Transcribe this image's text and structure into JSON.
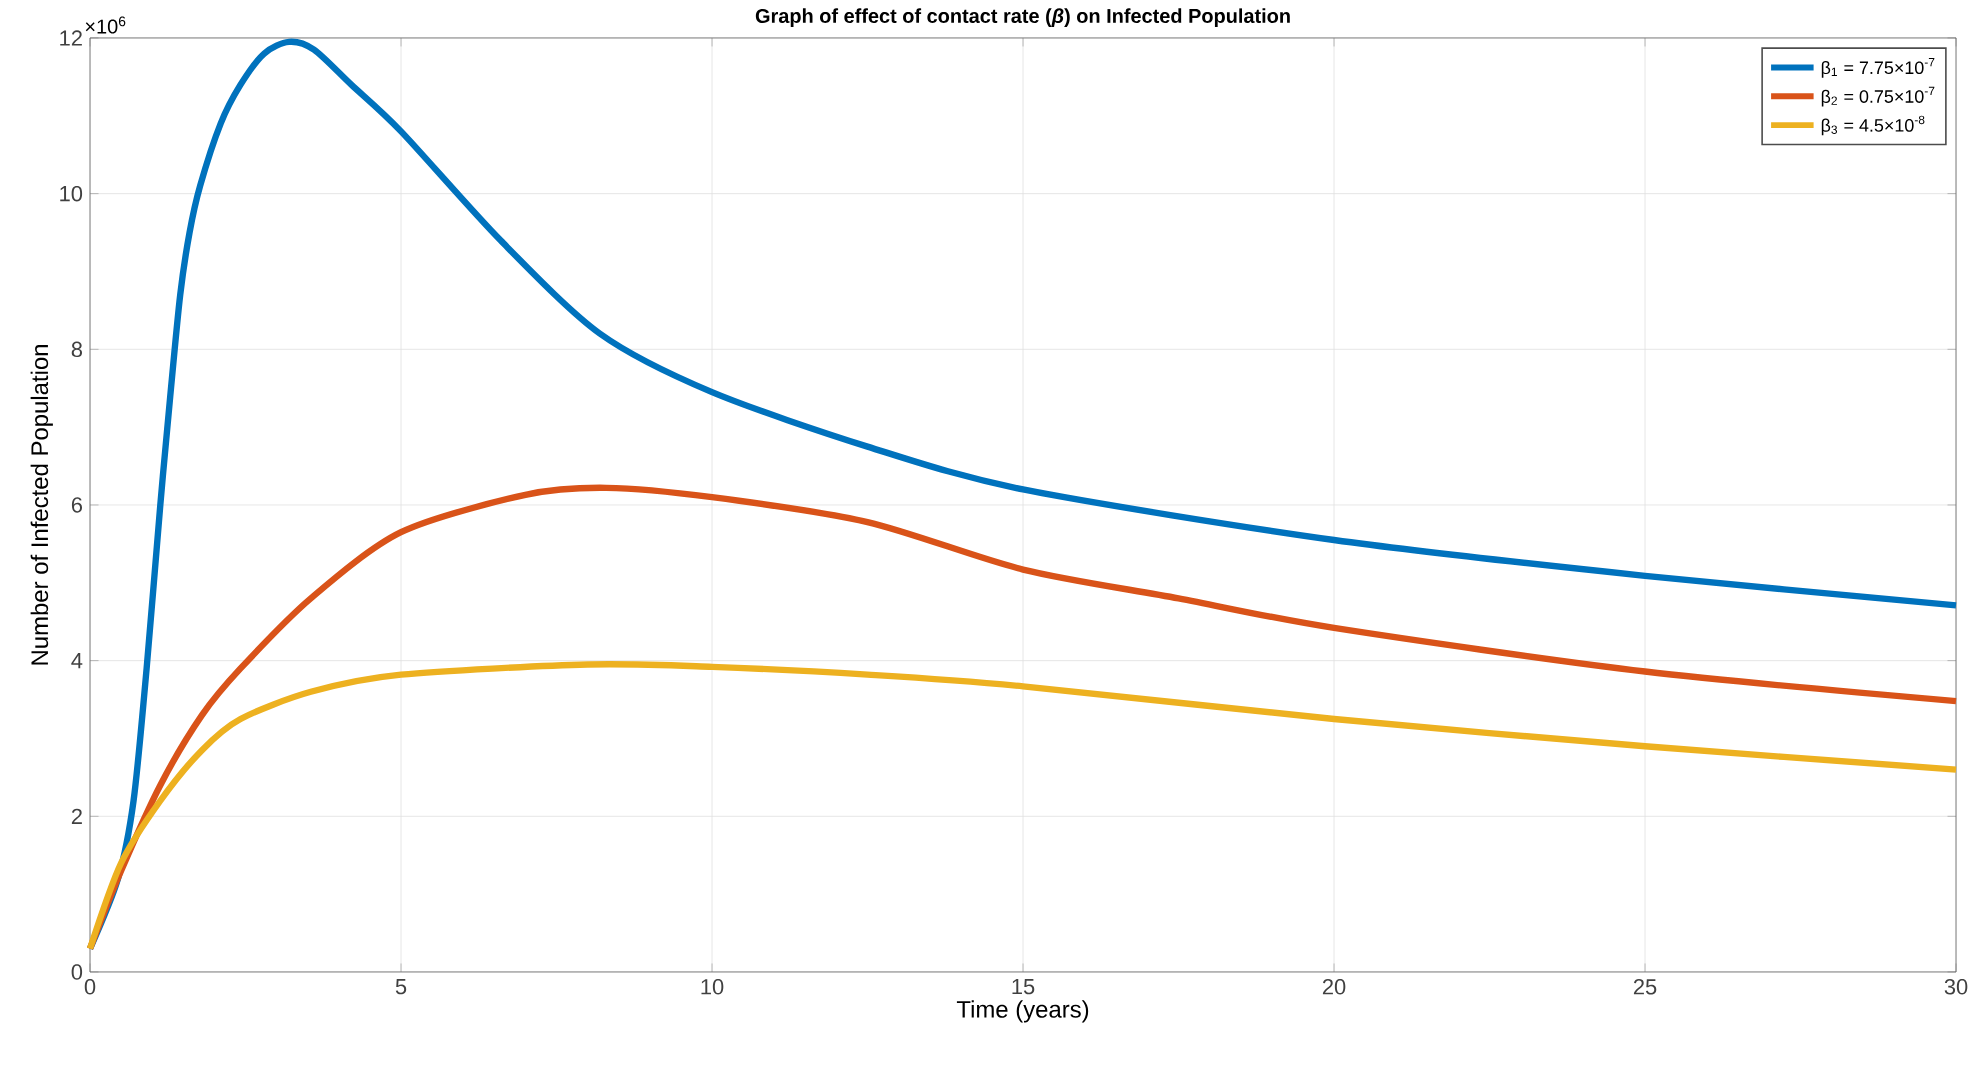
{
  "chart_data": {
    "type": "line",
    "title": "Graph of effect of contact rate (*β*) on Infected Population",
    "xlabel": "Time (years)",
    "ylabel": "Number of Infected Population",
    "annotations": [
      "×10$^{6}$"
    ],
    "xlim": [
      0,
      30
    ],
    "ylim": [
      0,
      12
    ],
    "xticks": [
      0,
      5,
      10,
      15,
      20,
      25,
      30
    ],
    "yticks": [
      0,
      2,
      4,
      6,
      8,
      10,
      12
    ],
    "grid": true,
    "legend": "top right",
    "series": [
      {
        "name": "β$_{1}$ = 7.75×10$^{-7}$",
        "color": "#0072bd",
        "x": [
          0,
          0.45,
          0.7,
          0.91,
          1.13,
          1.29,
          1.45,
          1.6,
          1.77,
          2.1,
          2.42,
          2.8,
          3.2,
          3.6,
          4.2,
          5,
          6.6,
          8.2,
          10,
          12.5,
          15,
          20,
          25,
          30
        ],
        "values": [
          0.3,
          1.2,
          2.2,
          3.9,
          6.0,
          7.4,
          8.7,
          9.5,
          10.1,
          10.9,
          11.4,
          11.8,
          11.95,
          11.85,
          11.4,
          10.8,
          9.4,
          8.2,
          7.45,
          6.75,
          6.2,
          5.55,
          5.09,
          4.71
        ]
      },
      {
        "name": "β$_{2}$ = 0.75×10$^{-7}$",
        "color": "#d95319",
        "x": [
          0,
          0.5,
          1.13,
          1.8,
          2.42,
          3.55,
          5,
          7,
          8.3,
          10,
          12.5,
          15,
          17.5,
          20,
          25,
          30
        ],
        "values": [
          0.3,
          1.3,
          2.4,
          3.3,
          3.9,
          4.8,
          5.65,
          6.13,
          6.22,
          6.1,
          5.78,
          5.17,
          4.8,
          4.42,
          3.86,
          3.48
        ]
      },
      {
        "name": "β$_{3}$ = 4.5×10$^{-8}$",
        "color": "#edb120",
        "x": [
          0,
          0.5,
          1.13,
          1.8,
          2.42,
          3.55,
          5,
          8,
          10,
          12.5,
          15,
          20,
          25,
          30
        ],
        "values": [
          0.3,
          1.4,
          2.2,
          2.85,
          3.25,
          3.6,
          3.82,
          3.95,
          3.92,
          3.82,
          3.67,
          3.25,
          2.9,
          2.6
        ]
      }
    ]
  }
}
